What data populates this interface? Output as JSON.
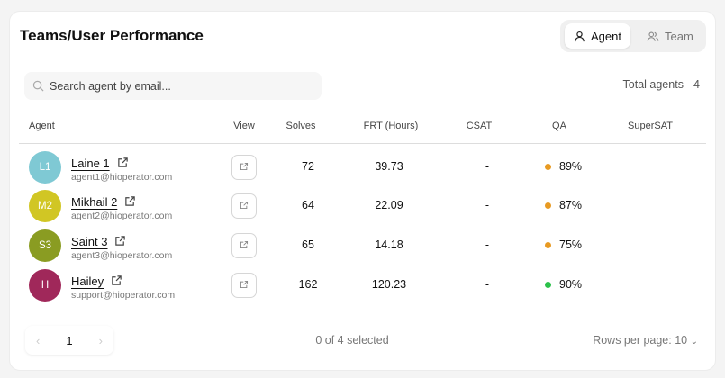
{
  "header": {
    "title": "Teams/User Performance",
    "toggle": [
      {
        "label": "Agent",
        "icon": "user-icon",
        "active": true
      },
      {
        "label": "Team",
        "icon": "users-icon",
        "active": false
      }
    ]
  },
  "search": {
    "placeholder": "Search agent by email...",
    "value": ""
  },
  "total": "Total agents - 4",
  "columns": [
    "Agent",
    "View",
    "Solves",
    "FRT (Hours)",
    "CSAT",
    "QA",
    "SuperSAT"
  ],
  "rows": [
    {
      "initials": "L1",
      "name": "Laine 1",
      "email": "agent1@hioperator.com",
      "avatar_color": "#7fc9d4",
      "solves": "72",
      "frt": "39.73",
      "csat": "-",
      "qa": "89%",
      "qa_color": "#e89a22",
      "supersat": ""
    },
    {
      "initials": "M2",
      "name": "Mikhail 2",
      "email": "agent2@hioperator.com",
      "avatar_color": "#d1c624",
      "solves": "64",
      "frt": "22.09",
      "csat": "-",
      "qa": "87%",
      "qa_color": "#e89a22",
      "supersat": ""
    },
    {
      "initials": "S3",
      "name": "Saint 3",
      "email": "agent3@hioperator.com",
      "avatar_color": "#8a9c22",
      "solves": "65",
      "frt": "14.18",
      "csat": "-",
      "qa": "75%",
      "qa_color": "#e89a22",
      "supersat": ""
    },
    {
      "initials": "H",
      "name": "Hailey",
      "email": "support@hioperator.com",
      "avatar_color": "#a0285a",
      "solves": "162",
      "frt": "120.23",
      "csat": "-",
      "qa": "90%",
      "qa_color": "#2cc14a",
      "supersat": ""
    }
  ],
  "footer": {
    "page": "1",
    "selected": "0 of 4 selected",
    "rows_per_page": "Rows per page: 10"
  }
}
